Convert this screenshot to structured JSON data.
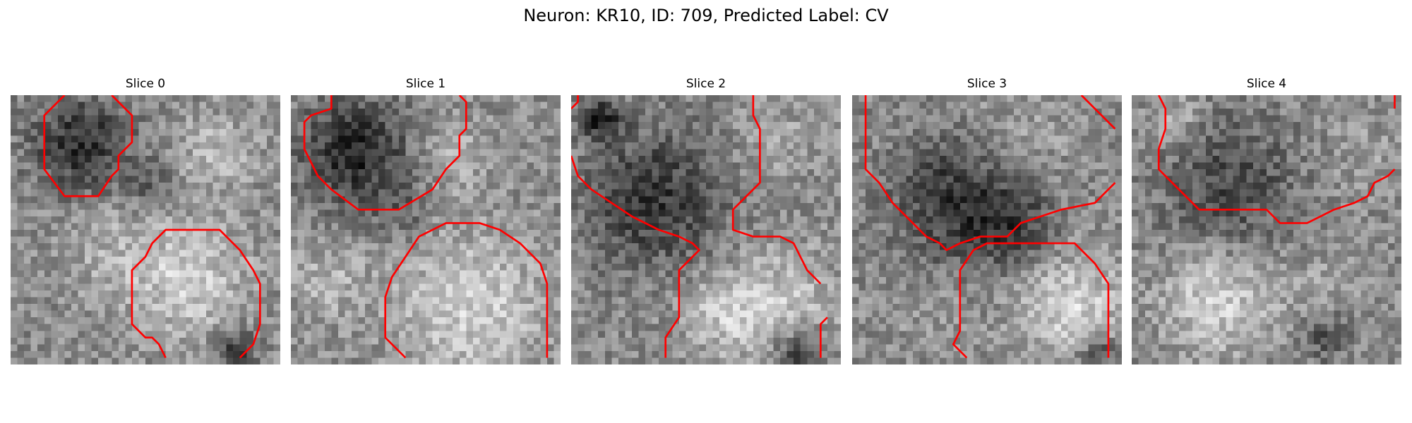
{
  "figure": {
    "title": "Neuron: KR10, ID: 709, Predicted Label: CV",
    "contour_color": "#ff0000"
  },
  "panels": [
    {
      "title": "Slice 0",
      "contours": [
        [
          [
            8,
            0
          ],
          [
            5,
            3
          ],
          [
            5,
            11
          ],
          [
            8,
            15
          ],
          [
            13,
            15
          ],
          [
            15,
            12
          ],
          [
            16,
            11
          ],
          [
            16,
            9
          ],
          [
            18,
            7
          ],
          [
            18,
            3
          ],
          [
            15,
            0
          ]
        ],
        [
          [
            23,
            39
          ],
          [
            22,
            37
          ],
          [
            21,
            36
          ],
          [
            20,
            36
          ],
          [
            18,
            34
          ],
          [
            18,
            26
          ],
          [
            20,
            24
          ],
          [
            21,
            22
          ],
          [
            23,
            20
          ],
          [
            25,
            20
          ],
          [
            28,
            20
          ],
          [
            31,
            20
          ],
          [
            34,
            23
          ],
          [
            36,
            26
          ],
          [
            37,
            28
          ],
          [
            37,
            34
          ],
          [
            36,
            37
          ],
          [
            34,
            39
          ]
        ]
      ]
    },
    {
      "title": "Slice 1",
      "contours": [
        [
          [
            6,
            0
          ],
          [
            6,
            2
          ],
          [
            3,
            3
          ],
          [
            2,
            4
          ],
          [
            2,
            8
          ],
          [
            4,
            12
          ],
          [
            6,
            14
          ],
          [
            10,
            17
          ],
          [
            16,
            17
          ],
          [
            21,
            14
          ],
          [
            23,
            11
          ],
          [
            25,
            9
          ],
          [
            25,
            6
          ],
          [
            26,
            5
          ],
          [
            26,
            1
          ],
          [
            25,
            0
          ]
        ],
        [
          [
            17,
            39
          ],
          [
            14,
            36
          ],
          [
            14,
            30
          ],
          [
            15,
            27
          ],
          [
            17,
            24
          ],
          [
            19,
            21
          ],
          [
            23,
            19
          ],
          [
            28,
            19
          ],
          [
            31,
            20
          ],
          [
            34,
            22
          ],
          [
            37,
            25
          ],
          [
            38,
            28
          ],
          [
            38,
            39
          ]
        ]
      ]
    },
    {
      "title": "Slice 2",
      "contours": [
        [
          [
            0,
            2
          ],
          [
            1,
            1
          ],
          [
            1,
            0
          ]
        ],
        [
          [
            0,
            9
          ],
          [
            1,
            12
          ],
          [
            3,
            14
          ],
          [
            6,
            16
          ],
          [
            9,
            18
          ],
          [
            13,
            20
          ],
          [
            16,
            21
          ],
          [
            18,
            22
          ],
          [
            19,
            23
          ],
          [
            17,
            25
          ],
          [
            16,
            26
          ],
          [
            16,
            33
          ],
          [
            14,
            36
          ],
          [
            14,
            39
          ]
        ],
        [
          [
            27,
            0
          ],
          [
            27,
            3
          ],
          [
            28,
            5
          ],
          [
            28,
            13
          ],
          [
            26,
            15
          ],
          [
            24,
            17
          ],
          [
            24,
            20
          ],
          [
            27,
            21
          ],
          [
            31,
            21
          ],
          [
            33,
            22
          ],
          [
            34,
            24
          ],
          [
            35,
            26
          ],
          [
            36,
            27
          ],
          [
            37,
            28
          ]
        ],
        [
          [
            38,
            33
          ],
          [
            37,
            34
          ],
          [
            37,
            39
          ]
        ]
      ]
    },
    {
      "title": "Slice 3",
      "contours": [
        [
          [
            2,
            0
          ],
          [
            2,
            11
          ],
          [
            4,
            13
          ],
          [
            6,
            16
          ],
          [
            9,
            19
          ],
          [
            11,
            21
          ],
          [
            13,
            22
          ],
          [
            14,
            23
          ],
          [
            16,
            22
          ],
          [
            19,
            21
          ],
          [
            23,
            21
          ],
          [
            25,
            19
          ],
          [
            28,
            18
          ],
          [
            31,
            17
          ],
          [
            36,
            16
          ],
          [
            38,
            14
          ],
          [
            39,
            13
          ]
        ],
        [
          [
            34,
            0
          ],
          [
            37,
            3
          ],
          [
            39,
            5
          ]
        ],
        [
          [
            17,
            39
          ],
          [
            15,
            37
          ],
          [
            16,
            35
          ],
          [
            16,
            26
          ],
          [
            18,
            23
          ],
          [
            20,
            22
          ],
          [
            24,
            22
          ],
          [
            33,
            22
          ],
          [
            36,
            25
          ],
          [
            38,
            28
          ],
          [
            38,
            39
          ]
        ]
      ]
    },
    {
      "title": "Slice 4",
      "contours": [
        [
          [
            4,
            0
          ],
          [
            5,
            2
          ],
          [
            5,
            5
          ],
          [
            4,
            8
          ],
          [
            4,
            11
          ],
          [
            7,
            14
          ],
          [
            10,
            17
          ],
          [
            14,
            17
          ],
          [
            20,
            17
          ],
          [
            22,
            19
          ],
          [
            24,
            19
          ],
          [
            26,
            19
          ],
          [
            28,
            18
          ],
          [
            30,
            17
          ],
          [
            33,
            16
          ],
          [
            35,
            15
          ],
          [
            36,
            13
          ],
          [
            38,
            12
          ],
          [
            39,
            11
          ]
        ],
        [
          [
            39,
            0
          ],
          [
            39,
            2
          ]
        ]
      ]
    }
  ]
}
